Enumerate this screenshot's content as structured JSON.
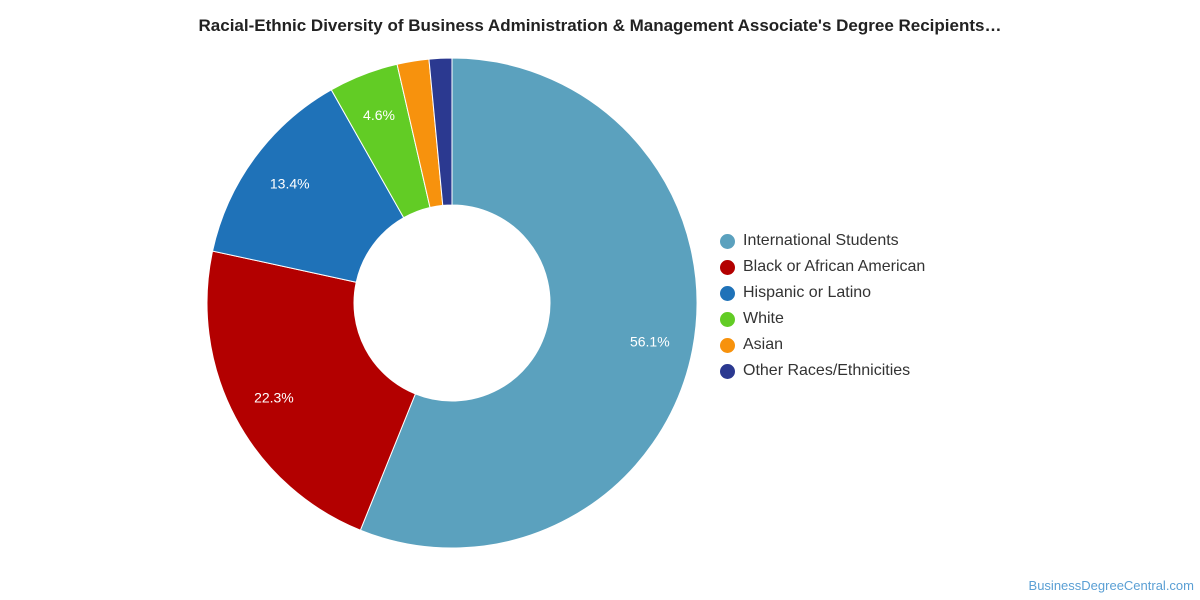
{
  "title": "Racial-Ethnic Diversity of Business Administration & Management Associate's Degree Recipients…",
  "footer": "BusinessDegreeCentral.com",
  "chart_data": {
    "type": "pie",
    "variant": "donut",
    "categories": [
      "International Students",
      "Black or African American",
      "Hispanic or Latino",
      "White",
      "Asian",
      "Other Races/Ethnicities"
    ],
    "values": [
      56.1,
      22.3,
      13.4,
      4.6,
      2.1,
      1.5
    ],
    "data_labels": [
      "56.1%",
      "22.3%",
      "13.4%",
      "4.6%",
      "",
      ""
    ],
    "colors": [
      "#5ba1be",
      "#b30000",
      "#1f72b8",
      "#62cc25",
      "#f7920d",
      "#2b3990"
    ],
    "legend_position": "right"
  }
}
